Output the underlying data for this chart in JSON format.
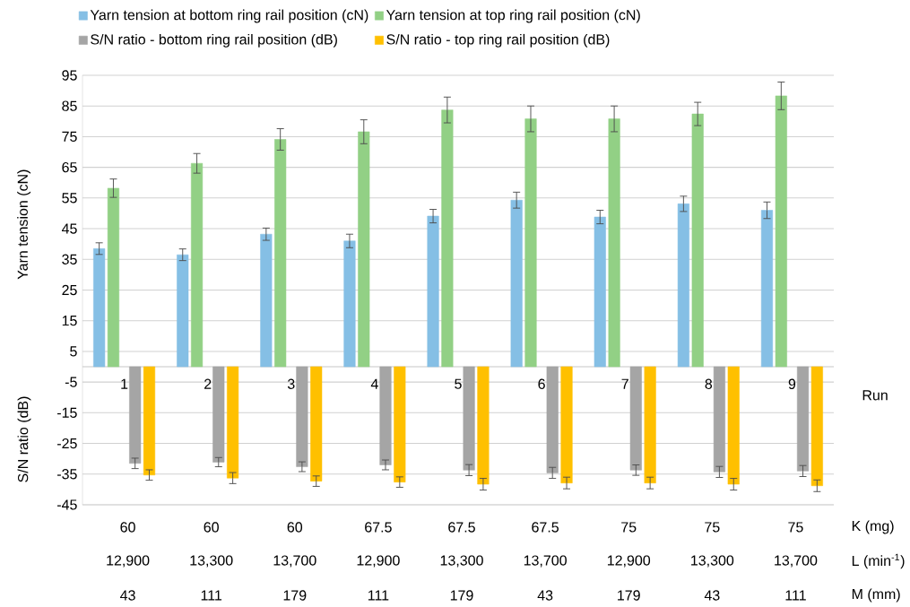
{
  "chart_data": {
    "type": "bar",
    "xlabel": "Run",
    "ylabel": "Yarn tension (cN)",
    "categories": [
      "1",
      "2",
      "3",
      "4",
      "5",
      "6",
      "7",
      "8",
      "9"
    ],
    "series": [
      {
        "name": "Yarn tension at bottom ring rail position (cN)",
        "color": "#85bfe5",
        "values": [
          38.5,
          36.5,
          43.2,
          41.0,
          49.1,
          54.3,
          48.8,
          53.1,
          51.0
        ],
        "errors": [
          1.9,
          1.9,
          2.0,
          2.2,
          2.2,
          2.6,
          2.2,
          2.5,
          2.7
        ]
      },
      {
        "name": "Yarn tension at top ring rail position (cN)",
        "color": "#92d085",
        "values": [
          58.2,
          66.3,
          74.1,
          76.6,
          83.7,
          80.8,
          80.8,
          82.4,
          88.3
        ],
        "errors": [
          3.0,
          3.2,
          3.5,
          3.9,
          4.2,
          4.2,
          4.2,
          3.8,
          4.5
        ]
      },
      {
        "name": "S/N ratio - bottom ring rail position (dB)",
        "color": "#a5a5a5",
        "values": [
          -31.5,
          -31.1,
          -32.6,
          -32.0,
          -33.7,
          -34.6,
          -33.7,
          -34.3,
          -34.0
        ],
        "errors": [
          1.7,
          1.5,
          1.6,
          1.6,
          1.8,
          1.8,
          1.7,
          1.8,
          1.8
        ]
      },
      {
        "name": "S/N ratio - top ring rail position (dB)",
        "color": "#ffc000",
        "values": [
          -35.3,
          -36.3,
          -37.3,
          -37.6,
          -38.3,
          -37.9,
          -37.9,
          -38.3,
          -38.8
        ],
        "errors": [
          1.7,
          1.8,
          1.7,
          1.7,
          1.9,
          1.9,
          1.9,
          1.9,
          1.9
        ]
      }
    ],
    "ylim": [
      -45,
      95
    ],
    "yticks": [
      -45,
      -35,
      -25,
      -15,
      -5,
      5,
      15,
      25,
      35,
      45,
      55,
      65,
      75,
      85,
      95
    ],
    "grid": "y",
    "legend": "top",
    "annotations": [
      "S/N ratio (dB)",
      "60",
      "60",
      "60",
      "67.5",
      "67.5",
      "67.5",
      "75",
      "75",
      "75",
      "K (mg)",
      "12,900",
      "13,300",
      "13,700",
      "12,900",
      "13,300",
      "13,700",
      "12,900",
      "13,300",
      "13,700",
      "L (min$^{-1}$)",
      "43",
      "111",
      "179",
      "111",
      "179",
      "43",
      "179",
      "43",
      "111",
      "M (mm)"
    ]
  }
}
